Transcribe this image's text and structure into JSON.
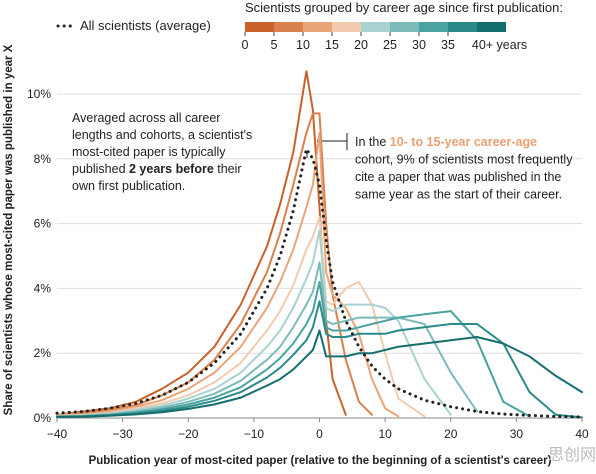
{
  "chart_data": {
    "type": "line",
    "x_label": "Publication year of most-cited paper (relative to the beginning of a scientist's career)",
    "y_label": "Share of scientists whose most-cited paper was published in year X",
    "xlim": [
      -40,
      40
    ],
    "ylim": [
      0,
      11
    ],
    "xticks": [
      {
        "value": -40,
        "label": "−40"
      },
      {
        "value": -30,
        "label": "−30"
      },
      {
        "value": -20,
        "label": "−20"
      },
      {
        "value": -10,
        "label": "−10"
      },
      0,
      10,
      20,
      30,
      40
    ],
    "yticks": [
      {
        "value": 0,
        "label": "0%"
      },
      {
        "value": 2,
        "label": "2%"
      },
      {
        "value": 4,
        "label": "4%"
      },
      {
        "value": 6,
        "label": "6%"
      },
      {
        "value": 8,
        "label": "8%"
      },
      {
        "value": 10,
        "label": "10%"
      }
    ],
    "colorbar_title": "Scientists grouped by career age since first publication:",
    "colorbar_labels": [
      "0",
      "5",
      "10",
      "15",
      "20",
      "25",
      "30",
      "35",
      "40+ years"
    ],
    "x": [
      -40,
      -36,
      -32,
      -28,
      -24,
      -20,
      -16,
      -12,
      -8,
      -6,
      -4,
      -2,
      -1,
      0,
      1,
      2,
      4,
      6,
      8,
      10,
      12,
      16,
      20,
      24,
      28,
      32,
      36,
      40
    ],
    "series": [
      {
        "color": "#c8622a",
        "values": [
          0.1,
          0.2,
          0.3,
          0.5,
          0.9,
          1.4,
          2.2,
          3.5,
          5.3,
          6.6,
          8.2,
          10.7,
          9.5,
          6.5,
          3.0,
          1.2,
          0.1,
          null,
          null,
          null,
          null,
          null,
          null,
          null,
          null,
          null,
          null,
          null
        ]
      },
      {
        "color": "#d9814c",
        "values": [
          0.1,
          0.15,
          0.25,
          0.4,
          0.7,
          1.1,
          1.8,
          2.9,
          4.5,
          5.7,
          7.2,
          8.8,
          9.4,
          9.4,
          6.0,
          3.8,
          1.8,
          0.5,
          0.1,
          null,
          null,
          null,
          null,
          null,
          null,
          null,
          null,
          null
        ]
      },
      {
        "color": "#e9a578",
        "values": [
          0.1,
          0.1,
          0.2,
          0.35,
          0.55,
          0.9,
          1.4,
          2.2,
          3.4,
          4.2,
          5.2,
          6.5,
          7.2,
          8.8,
          4.5,
          3.8,
          3.4,
          2.6,
          1.2,
          0.3,
          0.05,
          null,
          null,
          null,
          null,
          null,
          null,
          null
        ]
      },
      {
        "color": "#f2cbae",
        "values": [
          0.05,
          0.1,
          0.15,
          0.3,
          0.45,
          0.7,
          1.1,
          1.7,
          2.7,
          3.3,
          4.1,
          5.2,
          5.6,
          6.2,
          3.6,
          3.5,
          4.0,
          4.2,
          3.5,
          2.0,
          0.6,
          0.05,
          null,
          null,
          null,
          null,
          null,
          null
        ]
      },
      {
        "color": "#a9d3d1",
        "values": [
          0.05,
          0.08,
          0.13,
          0.25,
          0.38,
          0.6,
          0.9,
          1.4,
          2.2,
          2.7,
          3.4,
          4.3,
          4.8,
          5.8,
          3.4,
          3.3,
          3.5,
          3.5,
          3.5,
          3.4,
          3.0,
          1.2,
          0.1,
          null,
          null,
          null,
          null,
          null
        ]
      },
      {
        "color": "#7bbcba",
        "values": [
          0.05,
          0.07,
          0.11,
          0.2,
          0.32,
          0.5,
          0.75,
          1.15,
          1.8,
          2.2,
          2.8,
          3.5,
          3.9,
          4.8,
          3.0,
          2.9,
          3.0,
          3.1,
          3.1,
          3.1,
          3.1,
          2.9,
          1.4,
          0.2,
          null,
          null,
          null,
          null
        ]
      },
      {
        "color": "#4aa3a1",
        "values": [
          0.04,
          0.06,
          0.1,
          0.17,
          0.27,
          0.42,
          0.63,
          0.95,
          1.5,
          1.85,
          2.3,
          2.9,
          3.3,
          4.2,
          2.8,
          2.7,
          2.7,
          2.8,
          2.9,
          3.0,
          3.1,
          3.2,
          3.3,
          2.4,
          0.5,
          0.05,
          null,
          null
        ]
      },
      {
        "color": "#2a8a89",
        "values": [
          0.04,
          0.05,
          0.08,
          0.14,
          0.22,
          0.35,
          0.53,
          0.8,
          1.25,
          1.55,
          1.95,
          2.4,
          2.8,
          3.6,
          2.6,
          2.5,
          2.5,
          2.6,
          2.6,
          2.6,
          2.7,
          2.8,
          2.9,
          2.9,
          2.3,
          0.8,
          0.1,
          0.02
        ]
      },
      {
        "color": "#156e6e",
        "values": [
          0.03,
          0.04,
          0.07,
          0.11,
          0.18,
          0.28,
          0.42,
          0.63,
          1.0,
          1.2,
          1.5,
          1.9,
          2.1,
          2.7,
          1.9,
          1.9,
          1.9,
          2.0,
          2.0,
          2.1,
          2.2,
          2.3,
          2.4,
          2.5,
          2.3,
          1.9,
          1.3,
          0.8
        ]
      },
      {
        "name": "All scientists (average)",
        "color": "#222222",
        "dash": "dotted",
        "values": [
          0.15,
          0.2,
          0.3,
          0.45,
          0.7,
          1.1,
          1.7,
          2.6,
          4.0,
          5.0,
          6.4,
          8.3,
          8.0,
          7.2,
          5.5,
          4.2,
          3.0,
          2.2,
          1.6,
          1.2,
          0.9,
          0.55,
          0.35,
          0.2,
          0.12,
          0.08,
          0.05,
          0.03
        ]
      }
    ],
    "annotations": [
      {
        "lines": [
          [
            {
              "text": "Averaged across all career"
            }
          ],
          [
            {
              "text": "lengths and cohorts, a scientist's"
            }
          ],
          [
            {
              "text": "most-cited paper is typically"
            }
          ],
          [
            {
              "text": "published "
            },
            {
              "text": "2 years before",
              "bold": true
            },
            {
              "text": " their"
            }
          ],
          [
            {
              "text": "own first publication."
            }
          ]
        ]
      },
      {
        "lines": [
          [
            {
              "text": "In the "
            },
            {
              "text": "10- to 15-year career-age",
              "bold": true,
              "color": "#e8a070"
            }
          ],
          [
            {
              "text": "cohort, 9% of scientists most frequently"
            }
          ],
          [
            {
              "text": "cite a paper that was published in the"
            }
          ],
          [
            {
              "text": "same year as the start of their career."
            }
          ]
        ]
      }
    ],
    "watermark": "思创网"
  }
}
